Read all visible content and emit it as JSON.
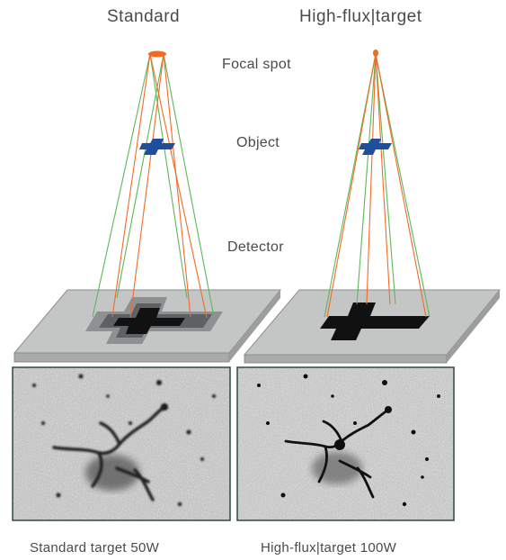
{
  "titles": {
    "standard": "Standard",
    "high_flux": "High-flux|target"
  },
  "labels": {
    "focal_spot": "Focal spot",
    "object": "Object",
    "detector": "Detector"
  },
  "captions": {
    "standard": "Standard target 50W",
    "high_flux": "High-flux|target 100W"
  },
  "colors": {
    "spot": "#f26b25",
    "ray_orange": "#f26b25",
    "ray_green": "#5cb85c",
    "object": "#1f4e9c",
    "plate": "#c4c6c6",
    "plate_edge": "#8c8e8e",
    "shadow_dark": "#111111",
    "shadow_mid": "#5e6163",
    "shadow_light": "#8e9092"
  }
}
